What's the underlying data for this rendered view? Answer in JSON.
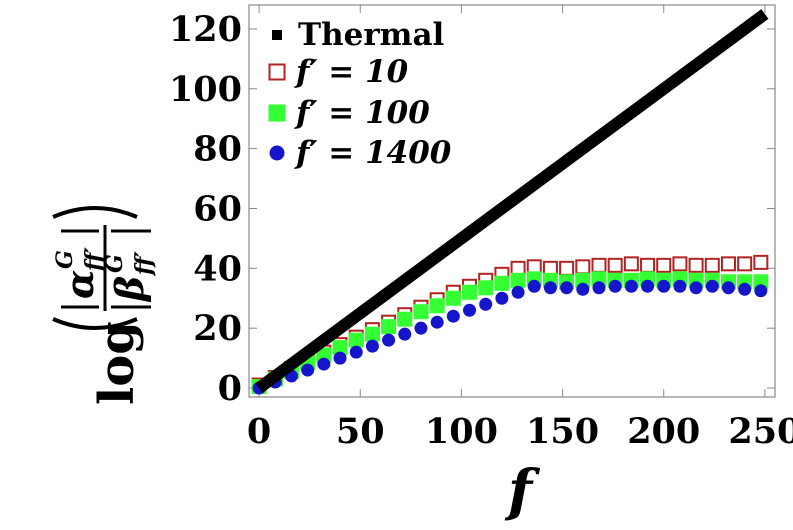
{
  "chart_data": {
    "type": "scatter",
    "title": "",
    "xlabel": "f",
    "ylabel": {
      "func": "log",
      "num_symbol": "α",
      "den_symbol": "β",
      "superscript": "G",
      "subscript": "ff′"
    },
    "xlim": [
      -5,
      255
    ],
    "ylim": [
      -3,
      128
    ],
    "x_ticks": [
      0,
      50,
      100,
      150,
      200,
      250
    ],
    "y_ticks": [
      0,
      20,
      40,
      60,
      80,
      100,
      120
    ],
    "grid": false,
    "legend_position": "top-left",
    "series": [
      {
        "name": "Thermal",
        "marker": "line",
        "color": "#000000",
        "x": [
          0,
          250
        ],
        "y": [
          0,
          125
        ]
      },
      {
        "name": "f′ = 10",
        "marker": "open-square",
        "color": "#b22222",
        "x": [
          0,
          8,
          16,
          24,
          32,
          40,
          48,
          56,
          64,
          72,
          80,
          88,
          96,
          104,
          112,
          120,
          128,
          136,
          144,
          152,
          160,
          168,
          176,
          184,
          192,
          200,
          208,
          216,
          224,
          232,
          240,
          248
        ],
        "y": [
          1,
          3.5,
          6.5,
          9.5,
          12,
          14.5,
          17,
          19.5,
          22,
          24.5,
          27,
          29.5,
          32,
          34,
          36,
          38,
          40,
          40.5,
          40,
          40,
          40.5,
          41,
          41,
          41.5,
          41,
          41,
          41.5,
          41,
          41,
          41.5,
          41.5,
          42
        ]
      },
      {
        "name": "f′ = 100",
        "marker": "filled-square",
        "color": "#33ff33",
        "x": [
          0,
          8,
          16,
          24,
          32,
          40,
          48,
          56,
          64,
          72,
          80,
          88,
          96,
          104,
          112,
          120,
          128,
          136,
          144,
          152,
          160,
          168,
          176,
          184,
          192,
          200,
          208,
          216,
          224,
          232,
          240,
          248
        ],
        "y": [
          0.5,
          3,
          5.5,
          8.5,
          11,
          13.5,
          16,
          18,
          20.5,
          23,
          25.5,
          27.5,
          30,
          32,
          33.5,
          35,
          36,
          36.5,
          36,
          35.5,
          36,
          36.5,
          36,
          36,
          36.5,
          36,
          36.5,
          36,
          36,
          35.5,
          35.5,
          35.5
        ]
      },
      {
        "name": "f′ = 1400",
        "marker": "filled-circle",
        "color": "#1515cc",
        "x": [
          0,
          8,
          16,
          24,
          32,
          40,
          48,
          56,
          64,
          72,
          80,
          88,
          96,
          104,
          112,
          120,
          128,
          136,
          144,
          152,
          160,
          168,
          176,
          184,
          192,
          200,
          208,
          216,
          224,
          232,
          240,
          248
        ],
        "y": [
          0,
          2,
          4,
          6,
          8,
          10,
          12,
          14,
          16,
          18,
          20,
          22,
          24,
          26,
          28,
          30,
          32,
          34,
          33.5,
          33.5,
          33,
          33.5,
          34,
          34,
          34,
          34,
          34,
          33.5,
          34,
          33.5,
          33,
          32.5
        ]
      }
    ]
  }
}
